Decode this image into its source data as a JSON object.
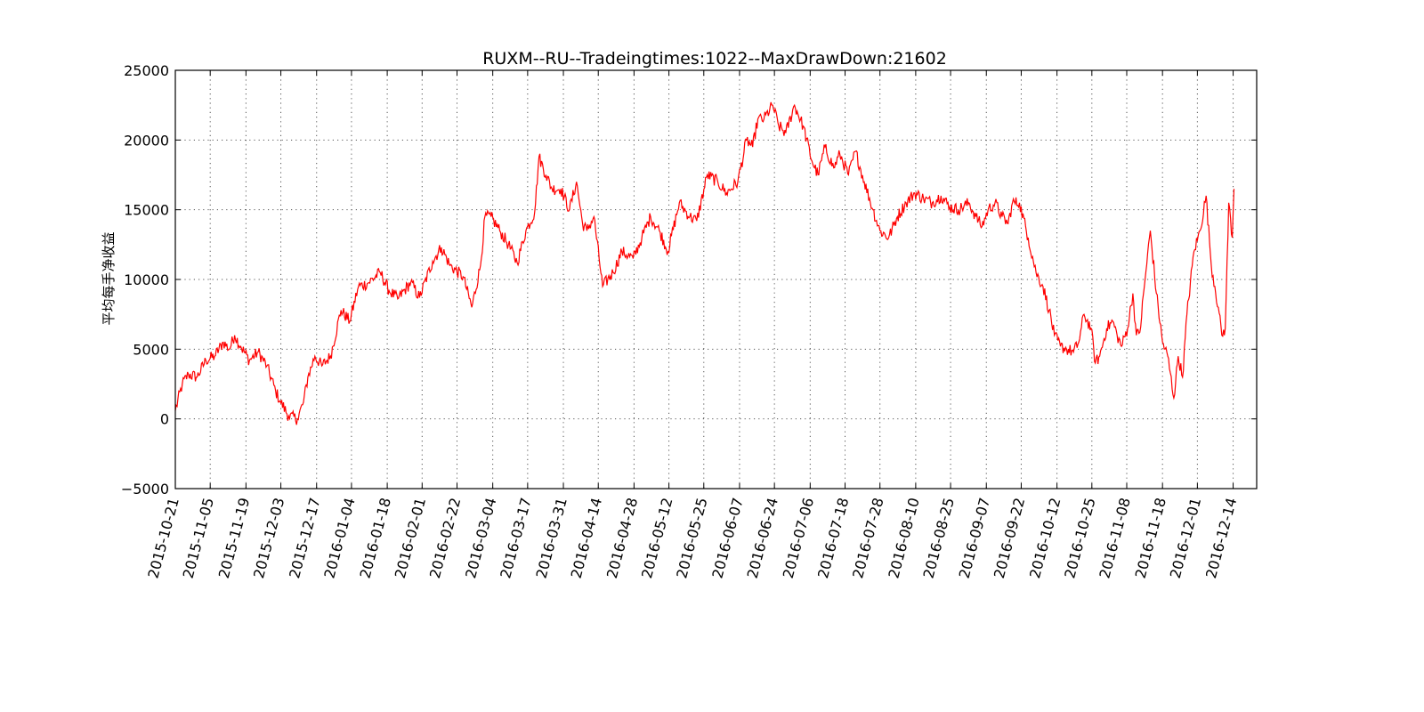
{
  "chart_data": {
    "type": "line",
    "title": "RUXM--RU--Tradeingtimes:1022--MaxDrawDown:21602",
    "xlabel": "",
    "ylabel": "平均每手净收益",
    "ylim": [
      -5000,
      25000
    ],
    "yticks": [
      -5000,
      0,
      5000,
      10000,
      15000,
      20000,
      25000
    ],
    "ytick_labels": [
      "−5000",
      "0",
      "5000",
      "10000",
      "15000",
      "20000",
      "25000"
    ],
    "xlim": [
      0,
      1240
    ],
    "xticks": [
      0,
      40,
      81,
      121,
      162,
      202,
      243,
      283,
      323,
      364,
      404,
      445,
      485,
      526,
      566,
      606,
      647,
      687,
      728,
      768,
      808,
      849,
      889,
      930,
      970,
      1011,
      1051,
      1091,
      1132,
      1172,
      1213
    ],
    "xtick_labels": [
      "2015-10-21",
      "2015-11-05",
      "2015-11-19",
      "2015-12-03",
      "2015-12-17",
      "2016-01-04",
      "2016-01-18",
      "2016-02-01",
      "2016-02-22",
      "2016-03-04",
      "2016-03-17",
      "2016-03-31",
      "2016-04-14",
      "2016-04-28",
      "2016-05-12",
      "2016-05-25",
      "2016-06-07",
      "2016-06-24",
      "2016-07-06",
      "2016-07-18",
      "2016-07-28",
      "2016-08-10",
      "2016-08-25",
      "2016-09-07",
      "2016-09-22",
      "2016-10-12",
      "2016-10-25",
      "2016-11-08",
      "2016-11-18",
      "2016-12-01",
      "2016-12-14"
    ],
    "grid": true,
    "line_color": "#ff0000",
    "series": [
      {
        "name": "",
        "x": [
          0,
          8,
          15,
          25,
          35,
          45,
          55,
          62,
          68,
          75,
          85,
          95,
          105,
          115,
          120,
          130,
          140,
          147,
          152,
          160,
          168,
          178,
          190,
          200,
          210,
          220,
          235,
          245,
          255,
          270,
          280,
          295,
          305,
          315,
          330,
          340,
          350,
          355,
          362,
          372,
          382,
          392,
          402,
          412,
          417,
          425,
          432,
          442,
          452,
          460,
          467,
          472,
          480,
          490,
          502,
          512,
          525,
          535,
          545,
          555,
          565,
          578,
          590,
          598,
          610,
          622,
          632,
          645,
          655,
          662,
          668,
          675,
          685,
          692,
          700,
          710,
          720,
          730,
          737,
          745,
          755,
          762,
          772,
          780,
          790,
          800,
          808,
          818,
          828,
          838,
          848,
          858,
          868,
          878,
          888,
          898,
          910,
          918,
          925,
          932,
          940,
          948,
          955,
          960,
          968,
          978,
          987,
          995,
          1002,
          1008,
          1015,
          1022,
          1030,
          1036,
          1042,
          1050,
          1055,
          1060,
          1068,
          1075,
          1080,
          1085,
          1092,
          1098,
          1102,
          1106,
          1112,
          1118,
          1125,
          1132,
          1138,
          1145,
          1150,
          1155,
          1160,
          1168,
          1175,
          1182,
          1188,
          1192,
          1196,
          1200,
          1204,
          1208,
          1212,
          1214
        ],
        "values": [
          600,
          2500,
          3200,
          3000,
          4200,
          4500,
          5500,
          5000,
          6000,
          5200,
          4200,
          4800,
          3800,
          2000,
          1300,
          200,
          0,
          1200,
          3000,
          4500,
          3800,
          4500,
          7800,
          7000,
          9500,
          9700,
          10500,
          9200,
          8600,
          9800,
          8700,
          11300,
          12300,
          11000,
          10200,
          8000,
          11000,
          14500,
          14500,
          13500,
          12500,
          11200,
          13500,
          14800,
          18800,
          17500,
          16500,
          16500,
          15000,
          17000,
          14000,
          13500,
          14500,
          9500,
          10500,
          12000,
          11500,
          13000,
          14500,
          13500,
          12000,
          15500,
          14500,
          14200,
          17500,
          17000,
          16200,
          17000,
          20000,
          19500,
          21500,
          21500,
          22500,
          21000,
          20500,
          22500,
          21000,
          18500,
          17500,
          19500,
          18000,
          19000,
          17500,
          19200,
          17000,
          15000,
          13500,
          13000,
          14500,
          15500,
          16200,
          15800,
          15500,
          16000,
          15200,
          15000,
          15500,
          14500,
          13800,
          15000,
          15500,
          14500,
          14000,
          15500,
          15500,
          13000,
          10500,
          9500,
          7800,
          6000,
          5200,
          5000,
          4800,
          5500,
          7500,
          6500,
          4000,
          4500,
          6500,
          7000,
          6000,
          5200,
          6500,
          9000,
          6000,
          6200,
          10000,
          13500,
          9000,
          5500,
          4500,
          1500,
          4500,
          3000,
          7500,
          12000,
          13500,
          16000,
          11000,
          9500,
          8000,
          6000,
          6500,
          15500,
          13000,
          16500
        ]
      }
    ]
  }
}
